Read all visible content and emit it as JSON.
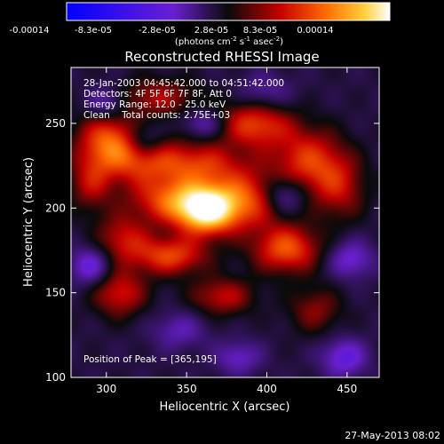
{
  "colorbar": {
    "ticks": [
      "-0.00014",
      "-8.3e-05",
      "-2.8e-05",
      "2.8e-05",
      "8.3e-05",
      "0.00014"
    ],
    "unit_main": "(photons cm",
    "unit_exp1": "-2",
    "unit_mid": " s",
    "unit_exp2": "-1",
    "unit_tail": " asec",
    "unit_exp3": "-2",
    "unit_close": ")"
  },
  "annotations": {
    "line1": "28-Jan-2003 04:45:42.000 to 04:51:42.000",
    "line2": "Detectors: 4F 5F 6F 7F 8F, Att 0",
    "line3": "Energy Range: 12.0 - 25.0 keV",
    "line4": "Clean    Total counts: 2.75E+03",
    "peak": "Position of Peak = [365,195]"
  },
  "footer": {
    "timestamp": "27-May-2013 08:02"
  },
  "chart_data": {
    "type": "heatmap",
    "title": "Reconstructed RHESSI Image",
    "xlabel": "Heliocentric X (arcsec)",
    "ylabel": "Heliocentric Y (arcsec)",
    "xlim": [
      278,
      470
    ],
    "ylim": [
      100,
      283
    ],
    "x_ticks": [
      300,
      350,
      400,
      450
    ],
    "y_ticks": [
      100,
      150,
      200,
      250
    ],
    "colormap": [
      "#0000ff",
      "#6a1fd0",
      "#0a0a0a",
      "#c40000",
      "#ff6a00",
      "#ffcf3a",
      "#ffffff"
    ],
    "peak_position": [
      365,
      195
    ],
    "sources": [
      {
        "x": 362,
        "y": 199,
        "amp": 1.0,
        "sx": 13,
        "sy": 10
      },
      {
        "x": 340,
        "y": 205,
        "amp": 0.55,
        "sx": 18,
        "sy": 10
      },
      {
        "x": 388,
        "y": 205,
        "amp": 0.55,
        "sx": 16,
        "sy": 12
      },
      {
        "x": 318,
        "y": 233,
        "amp": 0.6,
        "sx": 18,
        "sy": 12
      },
      {
        "x": 300,
        "y": 242,
        "amp": 0.4,
        "sx": 14,
        "sy": 12
      },
      {
        "x": 358,
        "y": 226,
        "amp": 0.45,
        "sx": 20,
        "sy": 9
      },
      {
        "x": 392,
        "y": 250,
        "amp": 0.55,
        "sx": 16,
        "sy": 10
      },
      {
        "x": 425,
        "y": 228,
        "amp": 0.5,
        "sx": 16,
        "sy": 14
      },
      {
        "x": 445,
        "y": 212,
        "amp": 0.35,
        "sx": 12,
        "sy": 14
      },
      {
        "x": 412,
        "y": 176,
        "amp": 0.6,
        "sx": 15,
        "sy": 10
      },
      {
        "x": 340,
        "y": 172,
        "amp": 0.55,
        "sx": 16,
        "sy": 8
      },
      {
        "x": 310,
        "y": 182,
        "amp": 0.4,
        "sx": 12,
        "sy": 10
      },
      {
        "x": 308,
        "y": 150,
        "amp": 0.45,
        "sx": 12,
        "sy": 10
      },
      {
        "x": 372,
        "y": 148,
        "amp": 0.4,
        "sx": 14,
        "sy": 8
      },
      {
        "x": 332,
        "y": 266,
        "amp": 0.35,
        "sx": 18,
        "sy": 8
      },
      {
        "x": 430,
        "y": 140,
        "amp": 0.3,
        "sx": 12,
        "sy": 10
      },
      {
        "x": 290,
        "y": 215,
        "amp": 0.35,
        "sx": 10,
        "sy": 12
      },
      {
        "x": 323,
        "y": 240,
        "amp": -0.5,
        "sx": 10,
        "sy": 8
      },
      {
        "x": 290,
        "y": 166,
        "amp": -0.4,
        "sx": 9,
        "sy": 8
      },
      {
        "x": 410,
        "y": 208,
        "amp": -0.4,
        "sx": 10,
        "sy": 8
      },
      {
        "x": 452,
        "y": 170,
        "amp": -0.35,
        "sx": 10,
        "sy": 8
      },
      {
        "x": 448,
        "y": 112,
        "amp": -0.4,
        "sx": 10,
        "sy": 8
      },
      {
        "x": 382,
        "y": 112,
        "amp": -0.3,
        "sx": 10,
        "sy": 7
      },
      {
        "x": 345,
        "y": 128,
        "amp": -0.25,
        "sx": 12,
        "sy": 8
      },
      {
        "x": 300,
        "y": 262,
        "amp": -0.35,
        "sx": 9,
        "sy": 7
      },
      {
        "x": 398,
        "y": 268,
        "amp": -0.25,
        "sx": 12,
        "sy": 8
      },
      {
        "x": 360,
        "y": 250,
        "amp": -0.3,
        "sx": 10,
        "sy": 6
      }
    ]
  }
}
